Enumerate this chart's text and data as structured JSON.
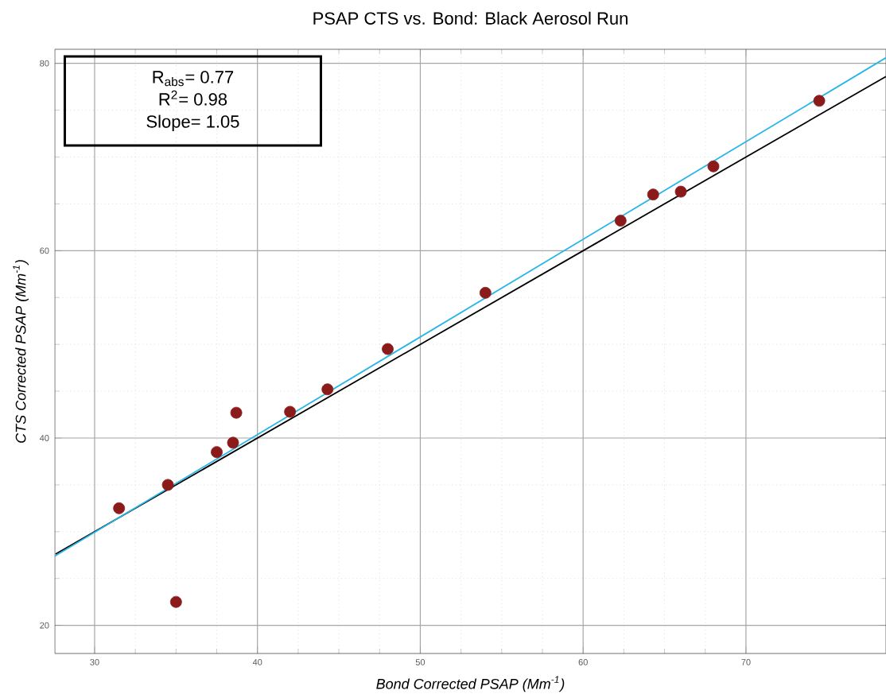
{
  "chart_data": {
    "type": "scatter",
    "title": "PSAP CTS vs. Bond: Black Aerosol Run",
    "xlabel": "Bond Corrected PSAP (Mm$^{-1}$)",
    "ylabel": "CTS Corrected PSAP (Mm$^{-1}$)",
    "annotations": [
      "R$_{abs}$= 0.77",
      "R$^{2}$= 0.98",
      "Slope= 1.05"
    ],
    "xlim": [
      27.56,
      78.6
    ],
    "ylim": [
      17,
      81.5
    ],
    "xticks": [
      30,
      40,
      50,
      60,
      70
    ],
    "yticks": [
      20,
      40,
      60,
      80
    ],
    "grid": true,
    "series": [
      {
        "marker": "circle",
        "color": "#8b1a1a",
        "x": [
          31.5,
          34.5,
          35,
          37.5,
          38.5,
          38.7,
          42,
          44.3,
          48,
          54,
          62.3,
          64.3,
          66,
          68,
          74.5
        ],
        "values": [
          32.5,
          35,
          22.5,
          38.5,
          39.5,
          42.7,
          42.8,
          45.2,
          49.5,
          55.5,
          63.2,
          66,
          66.3,
          69,
          76
        ]
      },
      {
        "type": "line",
        "marker": "none",
        "color": "#000000",
        "x": [
          27.6,
          78.6
        ],
        "values": [
          27.6,
          78.6
        ]
      },
      {
        "type": "line",
        "marker": "none",
        "color": "#29b6e6",
        "x": [
          27.56,
          78.6
        ],
        "values": [
          27.4,
          80.6
        ]
      }
    ]
  }
}
